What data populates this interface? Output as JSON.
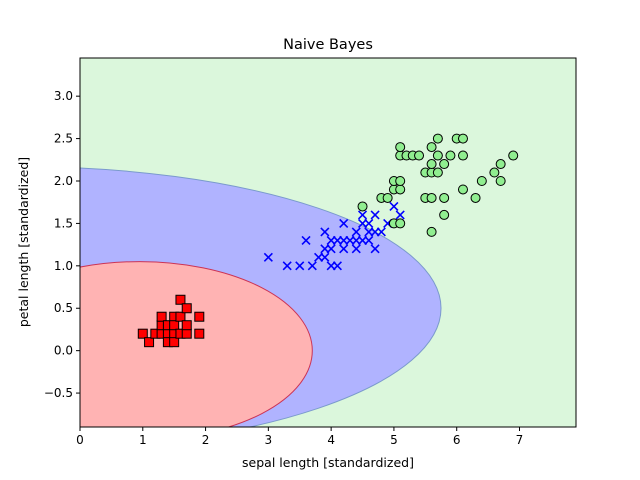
{
  "chart_data": {
    "type": "scatter",
    "title": "Naive Bayes",
    "xlabel": "sepal length [standardized]",
    "ylabel": "petal length [standardized]",
    "xlim": [
      0,
      7.9
    ],
    "ylim": [
      -0.9,
      3.45
    ],
    "xticks": [
      0,
      1,
      2,
      3,
      4,
      5,
      6,
      7
    ],
    "yticks": [
      -0.5,
      0.0,
      0.5,
      1.0,
      1.5,
      2.0,
      2.5,
      3.0
    ],
    "xtick_labels": [
      "0",
      "1",
      "2",
      "3",
      "4",
      "5",
      "6",
      "7"
    ],
    "ytick_labels": [
      "−0.5",
      "0.0",
      "0.5",
      "1.0",
      "1.5",
      "2.0",
      "2.5",
      "3.0"
    ],
    "grid": false,
    "decision_regions": [
      {
        "class": 0,
        "color": "#ffb3b3",
        "edge": "#cc3355",
        "shape": "ellipse",
        "center": [
          0.95,
          0.0
        ],
        "radii": [
          2.75,
          1.05
        ]
      },
      {
        "class": 1,
        "color": "#b0b3ff",
        "edge": "#7a9acc",
        "shape": "ellipse",
        "center": [
          -0.95,
          0.5
        ],
        "radii": [
          6.7,
          1.67
        ]
      },
      {
        "class": 2,
        "color": "#dbf7dc"
      }
    ],
    "series": [
      {
        "marker": "square",
        "color": "#ff0000",
        "points": [
          [
            1.0,
            0.2
          ],
          [
            1.1,
            0.1
          ],
          [
            1.2,
            0.2
          ],
          [
            1.3,
            0.2
          ],
          [
            1.3,
            0.3
          ],
          [
            1.3,
            0.4
          ],
          [
            1.4,
            0.2
          ],
          [
            1.4,
            0.3
          ],
          [
            1.4,
            0.1
          ],
          [
            1.5,
            0.2
          ],
          [
            1.5,
            0.4
          ],
          [
            1.5,
            0.1
          ],
          [
            1.5,
            0.3
          ],
          [
            1.6,
            0.2
          ],
          [
            1.6,
            0.6
          ],
          [
            1.6,
            0.4
          ],
          [
            1.7,
            0.2
          ],
          [
            1.7,
            0.3
          ],
          [
            1.7,
            0.5
          ],
          [
            1.9,
            0.2
          ],
          [
            1.9,
            0.4
          ]
        ]
      },
      {
        "marker": "x",
        "color": "#0000ff",
        "points": [
          [
            3.0,
            1.1
          ],
          [
            3.3,
            1.0
          ],
          [
            3.5,
            1.0
          ],
          [
            3.6,
            1.3
          ],
          [
            3.7,
            1.0
          ],
          [
            3.8,
            1.1
          ],
          [
            3.9,
            1.1
          ],
          [
            3.9,
            1.2
          ],
          [
            3.9,
            1.4
          ],
          [
            4.0,
            1.0
          ],
          [
            4.0,
            1.2
          ],
          [
            4.0,
            1.3
          ],
          [
            4.1,
            1.0
          ],
          [
            4.1,
            1.3
          ],
          [
            4.2,
            1.2
          ],
          [
            4.2,
            1.3
          ],
          [
            4.2,
            1.5
          ],
          [
            4.3,
            1.3
          ],
          [
            4.4,
            1.2
          ],
          [
            4.4,
            1.3
          ],
          [
            4.4,
            1.4
          ],
          [
            4.5,
            1.3
          ],
          [
            4.5,
            1.5
          ],
          [
            4.5,
            1.6
          ],
          [
            4.6,
            1.3
          ],
          [
            4.6,
            1.4
          ],
          [
            4.6,
            1.5
          ],
          [
            4.7,
            1.2
          ],
          [
            4.7,
            1.4
          ],
          [
            4.7,
            1.6
          ],
          [
            4.8,
            1.4
          ],
          [
            4.9,
            1.5
          ],
          [
            5.0,
            1.7
          ],
          [
            5.1,
            1.6
          ]
        ]
      },
      {
        "marker": "circle",
        "color": "#90ee90",
        "points": [
          [
            4.5,
            1.7
          ],
          [
            4.8,
            1.8
          ],
          [
            4.9,
            1.8
          ],
          [
            5.0,
            1.5
          ],
          [
            5.0,
            1.9
          ],
          [
            5.0,
            2.0
          ],
          [
            5.1,
            1.5
          ],
          [
            5.1,
            1.9
          ],
          [
            5.1,
            2.0
          ],
          [
            5.1,
            2.3
          ],
          [
            5.1,
            2.4
          ],
          [
            5.2,
            2.3
          ],
          [
            5.3,
            2.3
          ],
          [
            5.4,
            2.3
          ],
          [
            5.5,
            1.8
          ],
          [
            5.5,
            2.1
          ],
          [
            5.6,
            1.4
          ],
          [
            5.6,
            1.8
          ],
          [
            5.6,
            2.1
          ],
          [
            5.6,
            2.2
          ],
          [
            5.6,
            2.4
          ],
          [
            5.7,
            2.1
          ],
          [
            5.7,
            2.3
          ],
          [
            5.7,
            2.5
          ],
          [
            5.8,
            1.6
          ],
          [
            5.8,
            1.8
          ],
          [
            5.8,
            2.2
          ],
          [
            5.9,
            2.3
          ],
          [
            6.0,
            2.5
          ],
          [
            6.1,
            1.9
          ],
          [
            6.1,
            2.3
          ],
          [
            6.1,
            2.5
          ],
          [
            6.3,
            1.8
          ],
          [
            6.4,
            2.0
          ],
          [
            6.6,
            2.1
          ],
          [
            6.7,
            2.0
          ],
          [
            6.7,
            2.2
          ],
          [
            6.9,
            2.3
          ]
        ]
      }
    ]
  }
}
